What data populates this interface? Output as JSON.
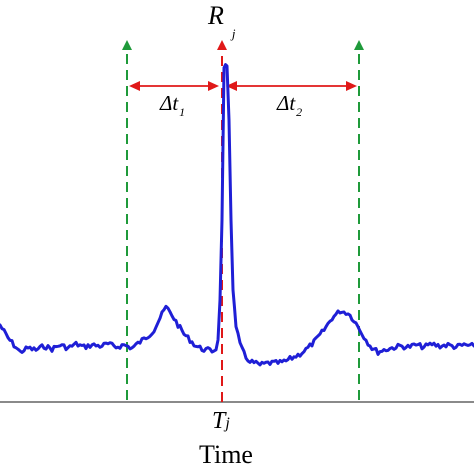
{
  "labels": {
    "peak_main": "R",
    "peak_sub": "j",
    "delta1_main": "Δt",
    "delta1_sub": "1",
    "delta2_main": "Δt",
    "delta2_sub": "2",
    "tick_main": "T",
    "tick_sub": "j",
    "axis_label": "Time"
  },
  "colors": {
    "signal": "#1f1fd6",
    "peak_marker": "#e01818",
    "window_marker": "#1f9a3a",
    "axis": "#444444",
    "text": "#000000"
  },
  "signal_trace": [
    [
      0,
      325
    ],
    [
      8,
      338
    ],
    [
      14,
      345
    ],
    [
      20,
      352
    ],
    [
      28,
      348
    ],
    [
      36,
      350
    ],
    [
      44,
      346
    ],
    [
      52,
      349
    ],
    [
      60,
      345
    ],
    [
      68,
      348
    ],
    [
      76,
      344
    ],
    [
      84,
      347
    ],
    [
      92,
      345
    ],
    [
      100,
      346
    ],
    [
      108,
      344
    ],
    [
      116,
      347
    ],
    [
      124,
      345
    ],
    [
      132,
      348
    ],
    [
      140,
      342
    ],
    [
      148,
      336
    ],
    [
      154,
      330
    ],
    [
      160,
      318
    ],
    [
      166,
      307
    ],
    [
      172,
      315
    ],
    [
      178,
      325
    ],
    [
      184,
      334
    ],
    [
      190,
      340
    ],
    [
      196,
      346
    ],
    [
      202,
      349
    ],
    [
      208,
      350
    ],
    [
      212,
      351
    ],
    [
      216,
      349
    ],
    [
      218,
      340
    ],
    [
      220,
      300
    ],
    [
      222,
      220
    ],
    [
      224,
      66
    ],
    [
      227,
      66
    ],
    [
      229,
      120
    ],
    [
      231,
      220
    ],
    [
      233,
      290
    ],
    [
      236,
      325
    ],
    [
      240,
      345
    ],
    [
      246,
      358
    ],
    [
      252,
      362
    ],
    [
      260,
      365
    ],
    [
      268,
      363
    ],
    [
      276,
      363
    ],
    [
      284,
      362
    ],
    [
      292,
      358
    ],
    [
      300,
      354
    ],
    [
      308,
      348
    ],
    [
      316,
      340
    ],
    [
      324,
      330
    ],
    [
      332,
      318
    ],
    [
      340,
      311
    ],
    [
      348,
      313
    ],
    [
      354,
      320
    ],
    [
      360,
      330
    ],
    [
      366,
      340
    ],
    [
      372,
      348
    ],
    [
      378,
      352
    ],
    [
      384,
      350
    ],
    [
      392,
      348
    ],
    [
      400,
      346
    ],
    [
      408,
      347
    ],
    [
      416,
      345
    ],
    [
      424,
      347
    ],
    [
      432,
      344
    ],
    [
      440,
      346
    ],
    [
      448,
      345
    ],
    [
      456,
      347
    ],
    [
      464,
      345
    ],
    [
      474,
      346
    ]
  ]
}
